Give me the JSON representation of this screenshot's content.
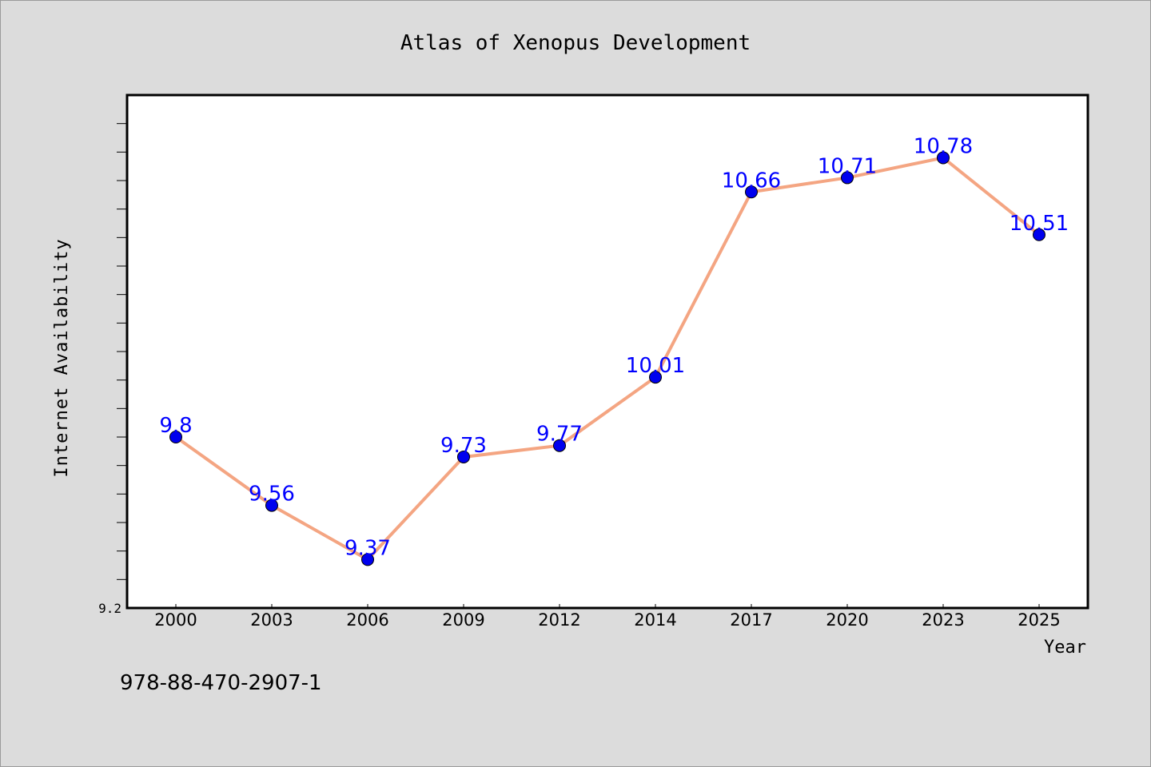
{
  "footer": {
    "isbn": "978-88-470-2907-1"
  },
  "colors": {
    "background": "#dcdcdc",
    "plot_background": "#ffffff",
    "line": "#f4a582",
    "marker": "#0000ee",
    "data_label": "#0000ff",
    "text": "#000000"
  },
  "chart_data": {
    "type": "line",
    "title": "Atlas of Xenopus Development",
    "xlabel": "Year",
    "ylabel": "Internet Availability",
    "categories": [
      "2000",
      "2003",
      "2006",
      "2009",
      "2012",
      "2014",
      "2017",
      "2020",
      "2023",
      "2025"
    ],
    "series": [
      {
        "values": [
          9.8,
          9.56,
          9.37,
          9.73,
          9.77,
          10.01,
          10.66,
          10.71,
          10.78,
          10.51
        ]
      }
    ],
    "data_labels": [
      "9.8",
      "9.56",
      "9.37",
      "9.73",
      "9.77",
      "10.01",
      "10.66",
      "10.71",
      "10.78",
      "10.51"
    ],
    "ytick_labels": [
      "9.2"
    ],
    "ylim": [
      9.2,
      11.0
    ],
    "grid": false,
    "legend": "none",
    "markers": "circle"
  }
}
